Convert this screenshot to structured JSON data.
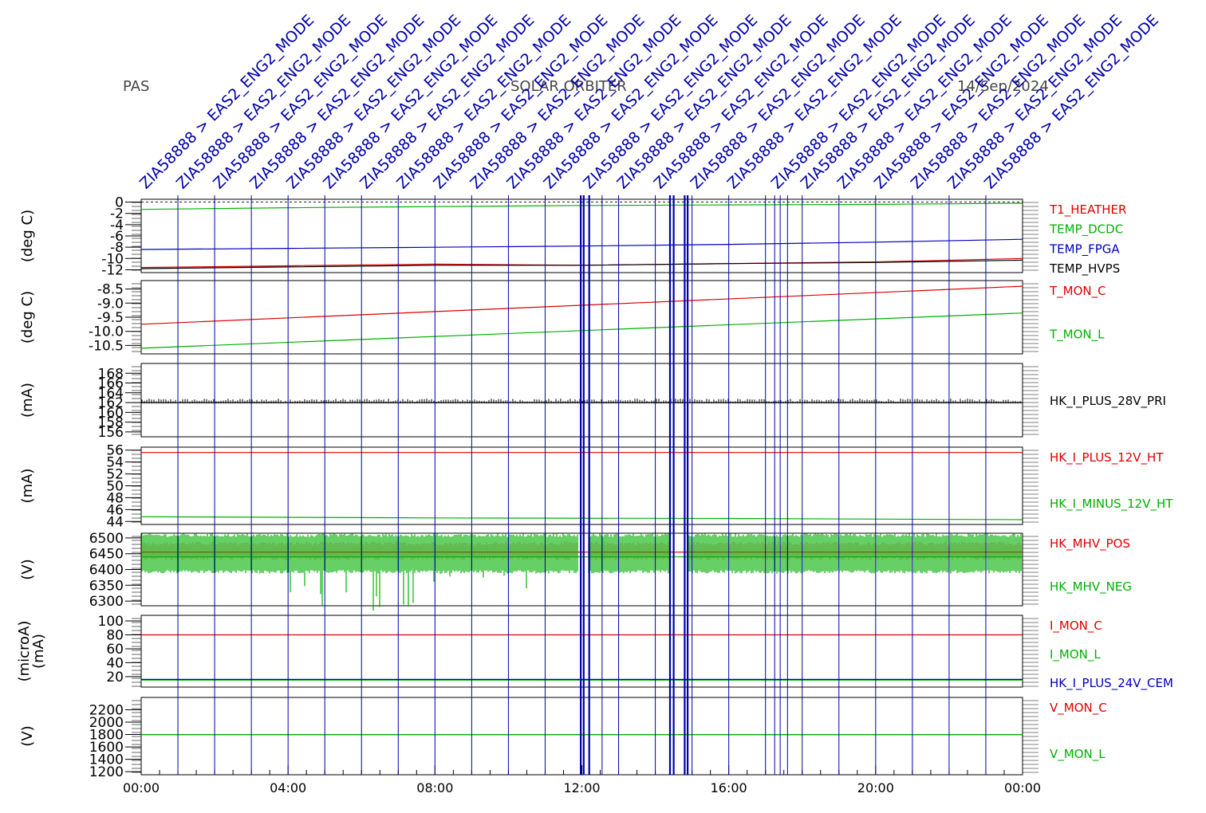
{
  "header": {
    "left": "PAS",
    "center": "SOLAR ORBITER",
    "right": "14/Sep/2024"
  },
  "colors": {
    "red": "#dd0000",
    "green": "#00b000",
    "blue": "#0000bb",
    "black": "#000000",
    "event_blue": "#0000aa"
  },
  "chart_data": {
    "type": "line",
    "x_axis": {
      "unit": "time of day",
      "range": [
        "00:00",
        "24:00"
      ],
      "tick_labels": [
        "00:00",
        "04:00",
        "08:00",
        "12:00",
        "16:00",
        "20:00",
        "00:00"
      ],
      "tick_hours": [
        0,
        4,
        8,
        12,
        16,
        20,
        24
      ]
    },
    "event_markers": {
      "color": "event_blue",
      "label_text": "ZIA58888 > EAS2_ENG2_MODE",
      "hours": [
        0,
        1,
        2,
        3,
        4,
        5,
        6,
        7,
        8,
        9,
        10,
        11,
        12.08,
        13,
        14,
        15,
        16,
        17.2,
        18,
        19,
        20,
        21,
        22,
        23
      ],
      "line_hours": [
        1,
        2,
        3,
        4,
        5,
        6,
        7,
        8,
        9,
        10,
        11,
        11.97,
        12.05,
        12.2,
        12.55,
        13,
        14,
        14.4,
        14.5,
        14.8,
        14.88,
        15,
        16,
        17,
        17.25,
        17.4,
        17.6,
        18,
        19,
        20,
        21,
        22,
        23
      ]
    },
    "panels": [
      {
        "ylabel": "(deg C)",
        "ylim": [
          -12.5,
          0.5
        ],
        "tick_labels": [
          "0",
          "-2",
          "-4",
          "-6",
          "-8",
          "-10",
          "-12"
        ],
        "tick_values": [
          0,
          -2,
          -4,
          -6,
          -8,
          -10,
          -12
        ],
        "dashed_zero": true,
        "series": [
          {
            "name": "T1_HEATHER",
            "color": "red",
            "x": [
              0,
              4,
              8,
              12,
              16,
              20,
              24
            ],
            "y": [
              -11.6,
              -11.3,
              -11.0,
              -11.2,
              -10.9,
              -10.6,
              -10.0
            ]
          },
          {
            "name": "TEMP_DCDC",
            "color": "green",
            "x": [
              0,
              4,
              8,
              12,
              16,
              20,
              24
            ],
            "y": [
              -1.3,
              -1.0,
              -0.8,
              -0.6,
              -0.5,
              -0.4,
              -0.2
            ]
          },
          {
            "name": "TEMP_FPGA",
            "color": "blue",
            "x": [
              0,
              4,
              8,
              12,
              16,
              20,
              24
            ],
            "y": [
              -8.4,
              -8.2,
              -8.0,
              -7.8,
              -7.5,
              -7.1,
              -6.6
            ]
          },
          {
            "name": "TEMP_HVPS",
            "color": "black",
            "x": [
              0,
              4,
              8,
              12,
              16,
              20,
              24
            ],
            "y": [
              -11.8,
              -11.5,
              -11.2,
              -11.2,
              -10.9,
              -10.7,
              -10.3
            ]
          }
        ]
      },
      {
        "ylabel": "(deg C)",
        "ylim": [
          -10.8,
          -8.2
        ],
        "tick_labels": [
          "-8.5",
          "-9.0",
          "-9.5",
          "-10.0",
          "-10.5"
        ],
        "tick_values": [
          -8.5,
          -9.0,
          -9.5,
          -10.0,
          -10.5
        ],
        "series": [
          {
            "name": "T_MON_C",
            "color": "red",
            "x": [
              0,
              24
            ],
            "y": [
              -9.75,
              -8.4
            ]
          },
          {
            "name": "T_MON_L",
            "color": "green",
            "x": [
              0,
              24
            ],
            "y": [
              -10.6,
              -9.35
            ]
          }
        ]
      },
      {
        "ylabel": "(mA)",
        "ylim": [
          155,
          170
        ],
        "tick_labels": [
          "168",
          "166",
          "164",
          "162",
          "160",
          "158",
          "156"
        ],
        "tick_values": [
          168,
          166,
          164,
          162,
          160,
          158,
          156
        ],
        "series": [
          {
            "name": "HK_I_PLUS_28V_PRI",
            "color": "black",
            "x": [
              0,
              24
            ],
            "y": [
              162,
              162
            ]
          }
        ]
      },
      {
        "ylabel": "(mA)",
        "ylim": [
          43.5,
          56.5
        ],
        "tick_labels": [
          "56",
          "54",
          "52",
          "50",
          "48",
          "46",
          "44"
        ],
        "tick_values": [
          56,
          54,
          52,
          50,
          48,
          46,
          44
        ],
        "series": [
          {
            "name": "HK_I_PLUS_12V_HT",
            "color": "red",
            "x": [
              0,
              24
            ],
            "y": [
              55.6,
              55.6
            ]
          },
          {
            "name": "HK_I_MINUS_12V_HT",
            "color": "green",
            "x": [
              0,
              8,
              16,
              24
            ],
            "y": [
              44.8,
              44.6,
              44.5,
              44.3
            ]
          }
        ]
      },
      {
        "ylabel": "(V)",
        "ylim": [
          6285,
          6515
        ],
        "tick_labels": [
          "6500",
          "6450",
          "6400",
          "6350",
          "6300"
        ],
        "tick_values": [
          6500,
          6450,
          6400,
          6350,
          6300
        ],
        "series": [
          {
            "name": "HK_MHV_POS",
            "color": "red",
            "x": [
              0,
              24
            ],
            "y": [
              6455,
              6455
            ]
          },
          {
            "name": "HK_MHV_NEG",
            "color": "green",
            "x": [
              0,
              24
            ],
            "y": [
              6440,
              6440
            ]
          }
        ]
      },
      {
        "ylabel": "(microA)",
        "ylabel2": "(mA)",
        "ylim": [
          5,
          108
        ],
        "tick_labels": [
          "100",
          "80",
          "60",
          "40",
          "20"
        ],
        "tick_values": [
          100,
          80,
          60,
          40,
          20
        ],
        "series": [
          {
            "name": "I_MON_C",
            "color": "red",
            "x": [
              0,
              24
            ],
            "y": [
              80,
              80
            ]
          },
          {
            "name": "I_MON_L",
            "color": "green",
            "x": [
              0,
              24
            ],
            "y": [
              15,
              15
            ]
          },
          {
            "name": "HK_I_PLUS_24V_CEM",
            "color": "blue",
            "x": [
              0,
              24
            ],
            "y": [
              16,
              16
            ]
          }
        ]
      },
      {
        "ylabel": "(V)",
        "ylim": [
          1150,
          2400
        ],
        "tick_labels": [
          "2200",
          "2000",
          "1800",
          "1600",
          "1400",
          "1200"
        ],
        "tick_values": [
          2200,
          2000,
          1800,
          1600,
          1400,
          1200
        ],
        "series": [
          {
            "name": "V_MON_C",
            "color": "red",
            "x": [
              0,
              24
            ],
            "y": [
              1800,
              1800
            ]
          },
          {
            "name": "V_MON_L",
            "color": "green",
            "x": [
              0,
              24
            ],
            "y": [
              1800,
              1800
            ]
          }
        ]
      }
    ]
  }
}
